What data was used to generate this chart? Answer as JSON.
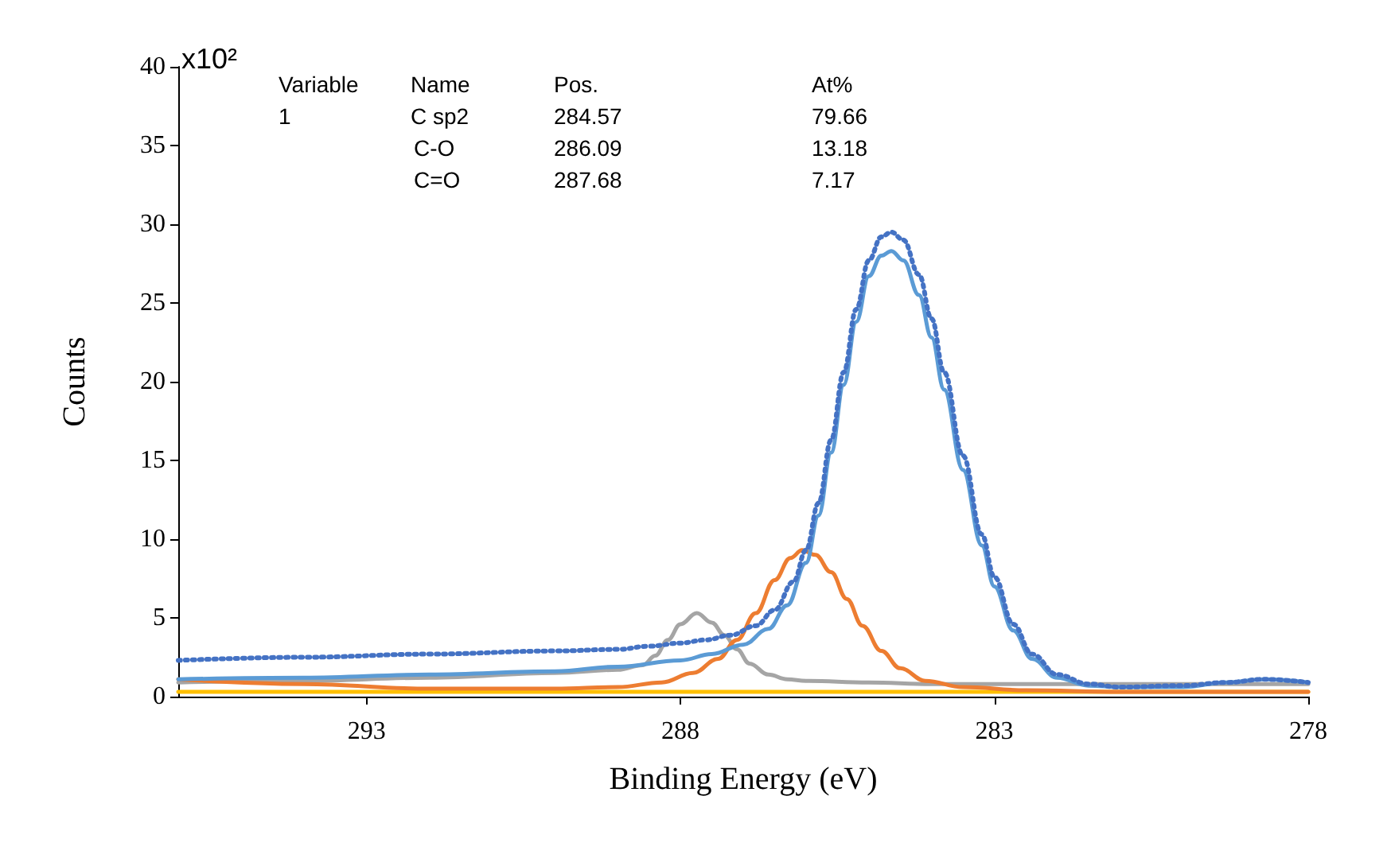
{
  "chart_data": {
    "type": "line",
    "xlabel": "Binding Energy (eV)",
    "ylabel": "Counts",
    "annotations": [
      "x10²",
      "Variable",
      "Name",
      "Pos.",
      "At%",
      "1",
      "C sp2",
      "284.57",
      "79.66",
      "C-O",
      "286.09",
      "13.18",
      "C=O",
      "287.68",
      "7.17"
    ],
    "xlim": [
      296,
      278
    ],
    "xticks": [
      293,
      288,
      283,
      278
    ],
    "ylim": [
      0,
      40
    ],
    "yticks": [
      0,
      5,
      10,
      15,
      20,
      25,
      30,
      35,
      40
    ],
    "grid": false,
    "marker": "none",
    "series": [
      {
        "color": "#ffc000",
        "line_style": "solid",
        "x": [
          296,
          278
        ],
        "values": [
          0.3,
          0.3
        ]
      },
      {
        "color": "#a5a5a5",
        "line_style": "solid",
        "x": [
          296,
          294,
          292,
          290,
          289,
          288.6,
          288.4,
          288.2,
          288,
          287.74,
          287.5,
          287.3,
          287.1,
          286.9,
          286.6,
          286.3,
          286,
          285,
          284,
          282,
          280,
          278
        ],
        "values": [
          0.9,
          1.0,
          1.2,
          1.5,
          1.7,
          2.0,
          2.6,
          3.6,
          4.6,
          5.3,
          4.7,
          3.9,
          3.0,
          2.1,
          1.4,
          1.1,
          1.0,
          0.9,
          0.8,
          0.8,
          0.8,
          0.8
        ]
      },
      {
        "color": "#ed7d31",
        "line_style": "solid",
        "x": [
          296,
          294,
          292,
          290,
          289,
          288.3,
          287.8,
          287.4,
          287.1,
          286.8,
          286.5,
          286.25,
          286.06,
          285.85,
          285.6,
          285.35,
          285.1,
          284.8,
          284.5,
          284.1,
          283.5,
          282.5,
          281,
          278
        ],
        "values": [
          1.1,
          0.8,
          0.5,
          0.5,
          0.6,
          0.9,
          1.5,
          2.4,
          3.6,
          5.3,
          7.4,
          8.8,
          9.3,
          9.0,
          7.9,
          6.2,
          4.5,
          2.9,
          1.8,
          1.0,
          0.6,
          0.4,
          0.3,
          0.3
        ]
      },
      {
        "color": "#5b9bd5",
        "line_style": "solid",
        "x": [
          296,
          294,
          292,
          290,
          289,
          288,
          287.5,
          287,
          286.6,
          286.3,
          286,
          285.8,
          285.6,
          285.4,
          285.2,
          285,
          284.8,
          284.64,
          284.45,
          284.2,
          284,
          283.8,
          283.5,
          283.2,
          283,
          282.7,
          282.4,
          282,
          281.5,
          281,
          280,
          279.3,
          278.7,
          278
        ],
        "values": [
          1.1,
          1.2,
          1.4,
          1.6,
          1.9,
          2.3,
          2.7,
          3.3,
          4.3,
          5.8,
          8.5,
          11.5,
          15.5,
          19.8,
          23.8,
          26.7,
          28.0,
          28.3,
          27.7,
          25.5,
          22.8,
          19.5,
          14.4,
          9.6,
          7.0,
          4.2,
          2.4,
          1.2,
          0.7,
          0.6,
          0.6,
          0.9,
          1.1,
          0.9
        ]
      },
      {
        "color": "#4472c4",
        "line_style": "dotted",
        "x": [
          296,
          294,
          292,
          290,
          289,
          288.5,
          288,
          287.6,
          287.2,
          286.8,
          286.5,
          286.2,
          286,
          285.8,
          285.6,
          285.4,
          285.2,
          285,
          284.8,
          284.64,
          284.45,
          284.2,
          284,
          283.8,
          283.5,
          283.2,
          283,
          282.7,
          282.4,
          282,
          281.5,
          281,
          280,
          279.3,
          278.7,
          278
        ],
        "values": [
          2.3,
          2.5,
          2.7,
          2.9,
          3.0,
          3.2,
          3.4,
          3.6,
          3.9,
          4.5,
          5.5,
          7.3,
          9.3,
          12.3,
          16.3,
          20.6,
          24.6,
          27.7,
          29.2,
          29.5,
          29.0,
          26.8,
          24.0,
          20.6,
          15.3,
          10.3,
          7.6,
          4.6,
          2.7,
          1.4,
          0.8,
          0.6,
          0.7,
          0.9,
          1.1,
          0.9
        ]
      }
    ]
  }
}
